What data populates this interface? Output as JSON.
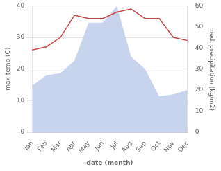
{
  "chart_data": {
    "type": "line",
    "xlabel": "date (month)",
    "ylabel": "max temp (C)",
    "y2label": "med. precipitation (kg/m2)",
    "categories": [
      "Jan",
      "Feb",
      "Mar",
      "Apr",
      "May",
      "Jun",
      "Jul",
      "Aug",
      "Sep",
      "Oct",
      "Nov",
      "Dec"
    ],
    "series": [
      {
        "type": "area",
        "axis": "y2",
        "color": "#c8d4ee",
        "values": [
          22,
          27,
          28,
          34,
          52,
          52,
          60,
          36,
          30,
          17,
          18,
          20
        ]
      },
      {
        "type": "line",
        "color": "#cc4444",
        "values": [
          26,
          27,
          30,
          37,
          36,
          36,
          38,
          39,
          36,
          36,
          30,
          29
        ]
      }
    ],
    "ylim": [
      0,
      40
    ],
    "yticks": [
      0,
      10,
      20,
      30,
      40
    ],
    "y2lim": [
      0,
      60
    ],
    "y2ticks": [
      0,
      10,
      20,
      30,
      40,
      50,
      60
    ],
    "grid": true
  }
}
